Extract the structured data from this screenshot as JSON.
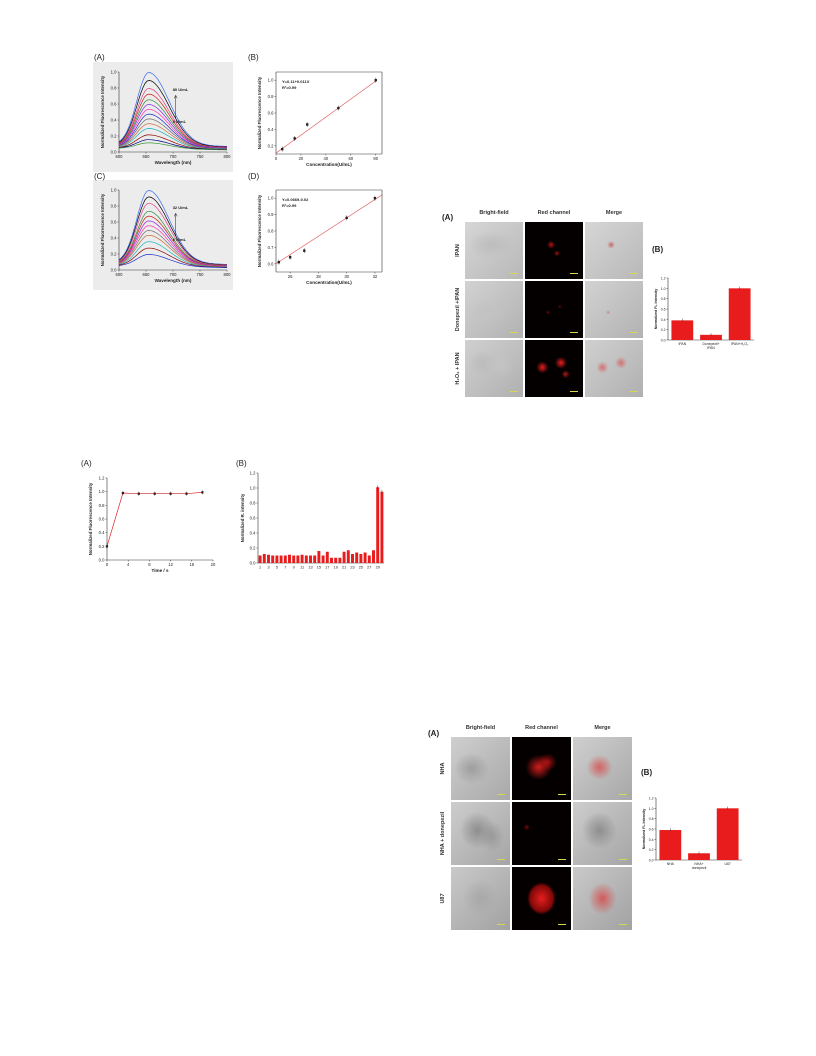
{
  "figure1": {
    "A": {
      "label": "(A)",
      "chart_data": {
        "type": "line",
        "xlabel": "Wavelength (nm)",
        "ylabel": "Normalized Fluorescence Intensity",
        "xlim": [
          600,
          800
        ],
        "ylim": [
          0.0,
          1.0
        ],
        "xticks": [
          "600",
          "650",
          "700",
          "750",
          "800"
        ],
        "yticks": [
          "0.0",
          "0.2",
          "0.4",
          "0.6",
          "0.8",
          "1.0"
        ],
        "annotation_top": "80 U/mL",
        "annotation_bottom": "0 U/mL",
        "peak_x": 655,
        "peaks": [
          1.0,
          0.9,
          0.8,
          0.73,
          0.66,
          0.6,
          0.54,
          0.48,
          0.42,
          0.36,
          0.3,
          0.22,
          0.16,
          0.12
        ],
        "series_colors": [
          "#3a6cf0",
          "#000000",
          "#e0408a",
          "#d12020",
          "#2e8b3c",
          "#8a2be2",
          "#ff2fb0",
          "#1f2fd0",
          "#707070",
          "#c76b3a",
          "#18b6c2",
          "#8b0000",
          "#000080",
          "#3a9a3a"
        ]
      }
    },
    "B": {
      "label": "(B)",
      "chart_data": {
        "type": "scatter",
        "xlabel": "Concentration(U/mL)",
        "ylabel": "Normalized Fluorescence Intensity",
        "xlim": [
          0,
          85
        ],
        "ylim": [
          0.1,
          1.1
        ],
        "xticks": [
          "0",
          "20",
          "40",
          "60",
          "80"
        ],
        "yticks": [
          "0.2",
          "0.4",
          "0.6",
          "0.8",
          "1.0"
        ],
        "equation": "Y=0.11+0.011X",
        "r2": "R²=0.99",
        "x": [
          5,
          15,
          25,
          50,
          80
        ],
        "y": [
          0.16,
          0.29,
          0.46,
          0.66,
          1.0
        ],
        "fit": [
          [
            0,
            0.11
          ],
          [
            80,
            0.99
          ]
        ]
      }
    },
    "C": {
      "label": "(C)",
      "chart_data": {
        "type": "line",
        "xlabel": "Wavelength (nm)",
        "ylabel": "Normalized Fluorescence Intensity",
        "xlim": [
          600,
          800
        ],
        "ylim": [
          0.0,
          1.0
        ],
        "xticks": [
          "600",
          "650",
          "700",
          "750",
          "800"
        ],
        "yticks": [
          "0.0",
          "0.2",
          "0.4",
          "0.6",
          "0.8",
          "1.0"
        ],
        "annotation_top": "32 U/mL",
        "annotation_bottom": "0 U/mL",
        "peak_x": 655,
        "peaks": [
          1.0,
          0.92,
          0.84,
          0.74,
          0.68,
          0.62,
          0.56,
          0.5,
          0.44,
          0.36,
          0.28,
          0.2
        ],
        "series_colors": [
          "#3a6cf0",
          "#000000",
          "#e0408a",
          "#2e8b3c",
          "#d12020",
          "#8a2be2",
          "#ff2fb0",
          "#707070",
          "#c76b3a",
          "#18b6c2",
          "#8b0000",
          "#1f2fd0"
        ]
      }
    },
    "D": {
      "label": "(D)",
      "chart_data": {
        "type": "scatter",
        "xlabel": "Concentration(U/mL)",
        "ylabel": "Normalized Fluorescence Intensity",
        "xlim": [
          25,
          32.5
        ],
        "ylim": [
          0.55,
          1.05
        ],
        "xticks": [
          "26",
          "28",
          "30",
          "32"
        ],
        "yticks": [
          "0.6",
          "0.7",
          "0.8",
          "0.9",
          "1.0"
        ],
        "equation": "Y=0.0669-0.02",
        "r2": "R²=0.99",
        "x": [
          25.2,
          26.0,
          27.0,
          30.0,
          32.0
        ],
        "y": [
          0.61,
          0.64,
          0.68,
          0.88,
          1.0
        ],
        "fit": [
          [
            25,
            0.6
          ],
          [
            32.5,
            1.02
          ]
        ]
      }
    }
  },
  "figure2": {
    "A": {
      "label": "(A)",
      "chart_data": {
        "type": "line",
        "xlabel": "Time / s",
        "ylabel": "Normalized Fluorescence Intensity",
        "xlim": [
          0,
          20
        ],
        "ylim": [
          0.0,
          1.2
        ],
        "xticks": [
          "0",
          "4",
          "8",
          "12",
          "16",
          "20"
        ],
        "yticks": [
          "0.0",
          "0.2",
          "0.4",
          "0.6",
          "0.8",
          "1.0",
          "1.2"
        ],
        "x": [
          0,
          3,
          6,
          9,
          12,
          15,
          18
        ],
        "y": [
          0.2,
          0.98,
          0.97,
          0.97,
          0.97,
          0.97,
          0.99
        ],
        "color": "#e02020"
      }
    },
    "B": {
      "label": "(B)",
      "chart_data": {
        "type": "bar",
        "xlabel": "",
        "ylabel": "Normalized R. intensity",
        "ylim": [
          0.0,
          1.2
        ],
        "yticks": [
          "0.0",
          "0.2",
          "0.4",
          "0.6",
          "0.8",
          "1.0",
          "1.2"
        ],
        "tick_labels": [
          "1",
          "3",
          "5",
          "7",
          "9",
          "11",
          "13",
          "15",
          "17",
          "19",
          "21",
          "23",
          "25",
          "27",
          "29"
        ],
        "values": [
          0.1,
          0.12,
          0.11,
          0.1,
          0.1,
          0.1,
          0.1,
          0.11,
          0.1,
          0.1,
          0.11,
          0.1,
          0.1,
          0.1,
          0.16,
          0.1,
          0.15,
          0.07,
          0.07,
          0.07,
          0.15,
          0.17,
          0.12,
          0.14,
          0.12,
          0.14,
          0.1,
          0.17,
          1.01,
          0.95
        ],
        "color": "#e81c1c"
      }
    }
  },
  "figure3": {
    "label_A": "(A)",
    "label_B": "(B)",
    "headers": [
      "Bright-field",
      "Red channel",
      "Merge"
    ],
    "rows": [
      "IPAN",
      "Donepezil +IPAN",
      "H₂O₂ + IPAN"
    ],
    "chart_data": {
      "type": "bar",
      "ylabel": "Normalized FL Intensity",
      "ylim": [
        0.0,
        1.2
      ],
      "yticks": [
        "0.0",
        "0.2",
        "0.4",
        "0.6",
        "0.8",
        "1.0",
        "1.2"
      ],
      "categories": [
        "IPAN",
        "Donepezil+ IPAN",
        "IPAN+H₂O₂"
      ],
      "values": [
        0.38,
        0.1,
        1.0
      ],
      "color": "#e81c1c"
    }
  },
  "figure4": {
    "label_A": "(A)",
    "label_B": "(B)",
    "headers": [
      "Bright-field",
      "Red channel",
      "Merge"
    ],
    "rows": [
      "NHA",
      "NHA + donepezil",
      "U87"
    ],
    "chart_data": {
      "type": "bar",
      "ylabel": "Normalized FL Intensity",
      "ylim": [
        0.0,
        1.2
      ],
      "yticks": [
        "0.0",
        "0.2",
        "0.4",
        "0.6",
        "0.8",
        "1.0",
        "1.2"
      ],
      "categories": [
        "NHA",
        "NHA+ donepezil",
        "U87"
      ],
      "values": [
        0.58,
        0.13,
        1.0
      ],
      "color": "#e81c1c"
    }
  }
}
